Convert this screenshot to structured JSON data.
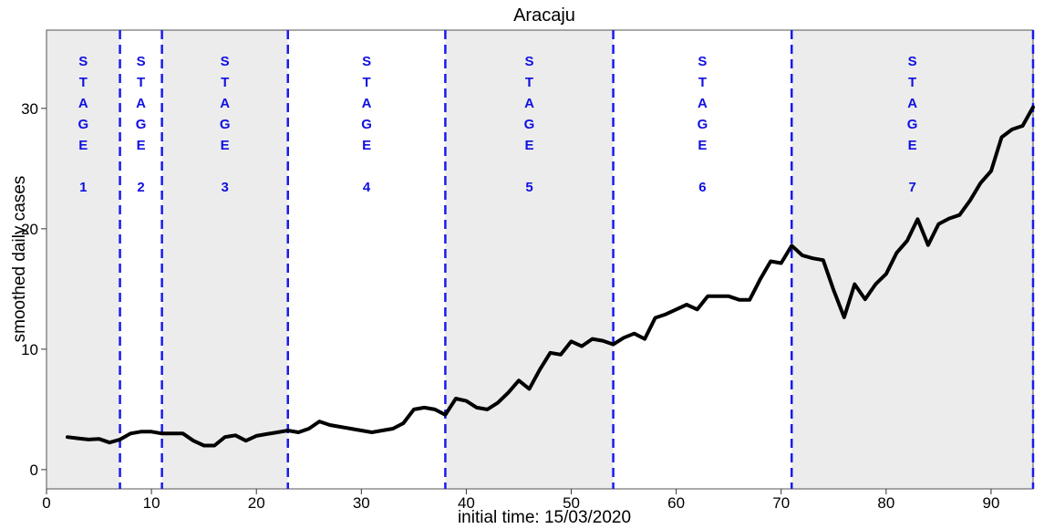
{
  "chart_data": {
    "type": "line",
    "title": "Aracaju",
    "xlabel": "initial time: 15/03/2020",
    "ylabel": "smoothed daily cases",
    "xlim": [
      0,
      94
    ],
    "ylim": [
      -1.6,
      36.5
    ],
    "xticks": [
      0,
      10,
      20,
      30,
      40,
      50,
      60,
      70,
      80,
      90
    ],
    "yticks": [
      0,
      10,
      20,
      30
    ],
    "grid": false,
    "stage_word": "STAGE",
    "stage_boundaries": [
      7,
      11,
      23,
      38,
      54,
      71,
      94
    ],
    "stages": [
      {
        "number": "1",
        "start": 0,
        "end": 7,
        "shaded": true
      },
      {
        "number": "2",
        "start": 7,
        "end": 11,
        "shaded": false
      },
      {
        "number": "3",
        "start": 11,
        "end": 23,
        "shaded": true
      },
      {
        "number": "4",
        "start": 23,
        "end": 38,
        "shaded": false
      },
      {
        "number": "5",
        "start": 38,
        "end": 54,
        "shaded": true
      },
      {
        "number": "6",
        "start": 54,
        "end": 71,
        "shaded": false
      },
      {
        "number": "7",
        "start": 71,
        "end": 94,
        "shaded": true
      }
    ],
    "series": [
      {
        "x": [
          2,
          3,
          4,
          5,
          6,
          7,
          8,
          9,
          10,
          11,
          12,
          13,
          14,
          15,
          16,
          17,
          18,
          19,
          20,
          21,
          22,
          23,
          24,
          25,
          26,
          27,
          28,
          29,
          30,
          31,
          32,
          33,
          34,
          35,
          36,
          37,
          38,
          39,
          40,
          41,
          42,
          43,
          44,
          45,
          46,
          47,
          48,
          49,
          50,
          51,
          52,
          53,
          54,
          55,
          56,
          57,
          58,
          59,
          60,
          61,
          62,
          63,
          64,
          65,
          66,
          67,
          68,
          69,
          70,
          71,
          72,
          73,
          74,
          75,
          76,
          77,
          78,
          79,
          80,
          81,
          82,
          83,
          84,
          85,
          86,
          87,
          88,
          89,
          90,
          91,
          92,
          93,
          94
        ],
        "values": [
          2.7,
          2.6,
          2.5,
          2.55,
          2.25,
          2.5,
          3.0,
          3.15,
          3.15,
          3.0,
          3.0,
          3.0,
          2.4,
          2.0,
          2.0,
          2.7,
          2.85,
          2.4,
          2.8,
          2.95,
          3.1,
          3.25,
          3.1,
          3.4,
          4.0,
          3.7,
          3.55,
          3.4,
          3.25,
          3.1,
          3.25,
          3.4,
          3.85,
          5.0,
          5.15,
          5.0,
          4.55,
          5.9,
          5.7,
          5.15,
          5.0,
          5.55,
          6.4,
          7.4,
          6.7,
          8.3,
          9.7,
          9.55,
          10.65,
          10.25,
          10.85,
          10.7,
          10.4,
          10.95,
          11.3,
          10.85,
          12.6,
          12.9,
          13.3,
          13.7,
          13.3,
          14.4,
          14.4,
          14.4,
          14.1,
          14.1,
          15.8,
          17.3,
          17.15,
          18.6,
          17.8,
          17.55,
          17.4,
          14.9,
          12.65,
          15.4,
          14.15,
          15.4,
          16.25,
          18.0,
          19.0,
          20.8,
          18.65,
          20.4,
          20.85,
          21.15,
          22.35,
          23.8,
          24.8,
          27.6,
          28.25,
          28.55,
          30.1
        ]
      }
    ]
  }
}
